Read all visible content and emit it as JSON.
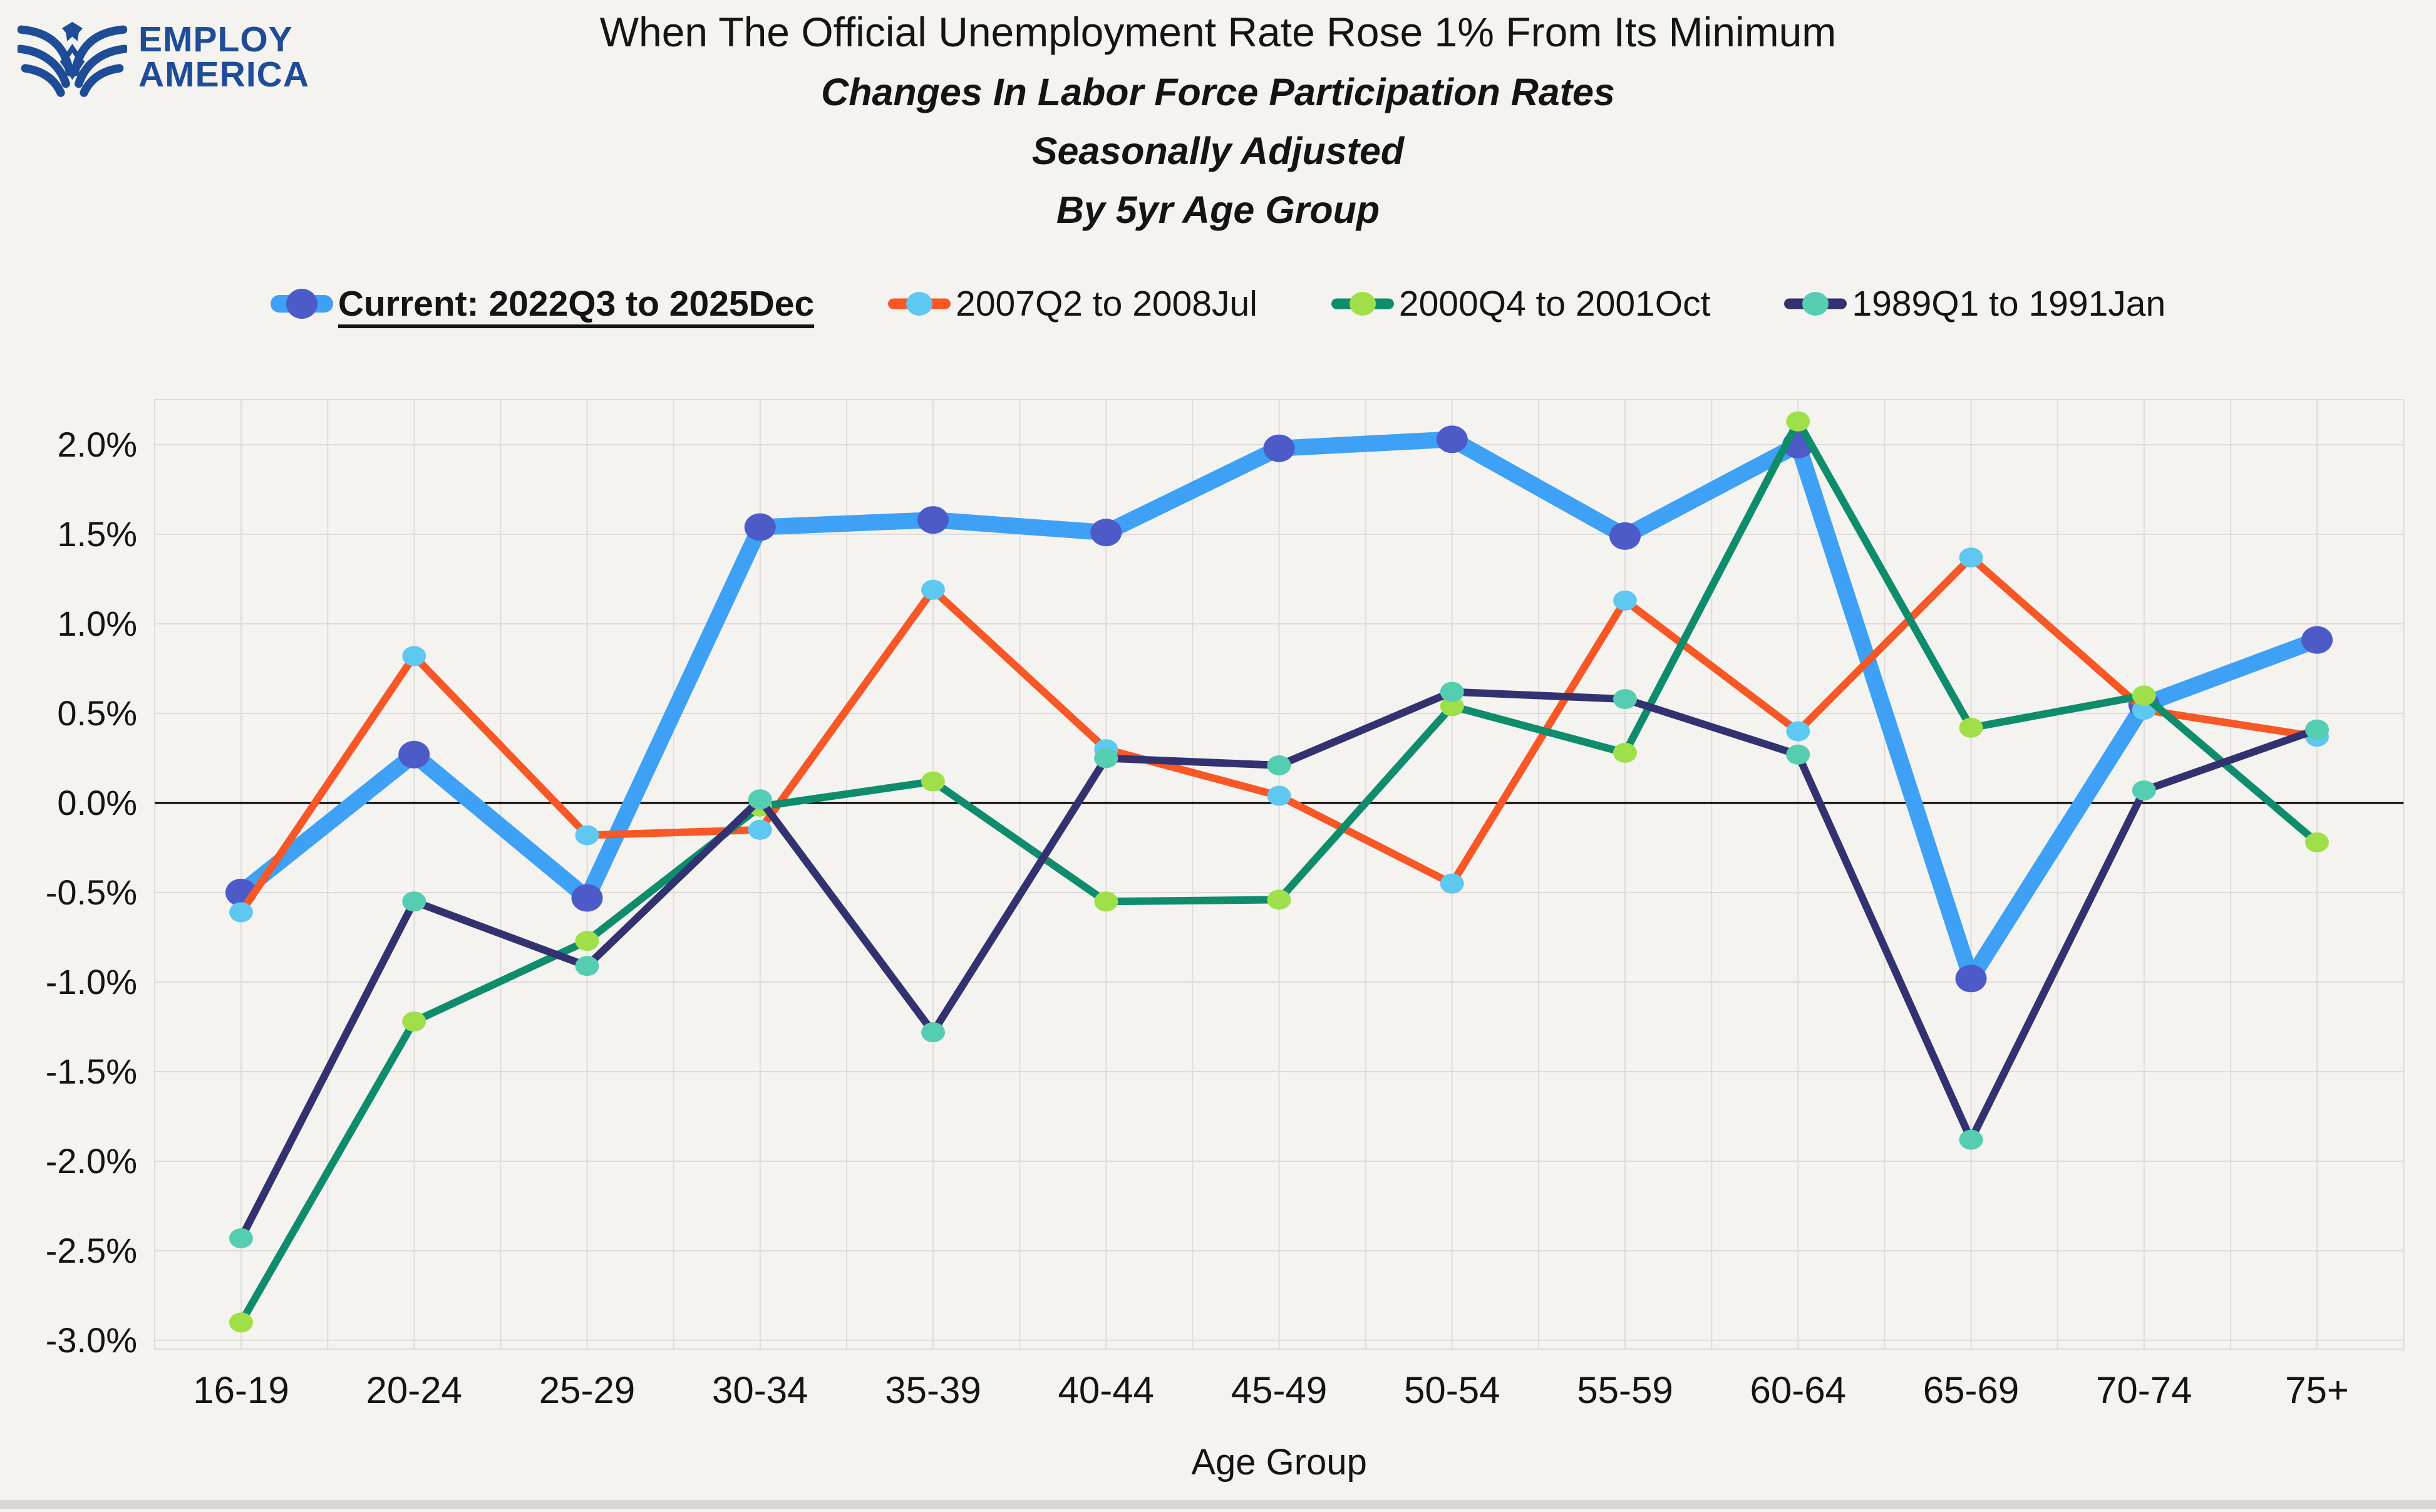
{
  "logo": {
    "line1": "EMPLOY",
    "line2": "AMERICA",
    "color": "#1E4C97"
  },
  "title": {
    "main": "When The Official Unemployment Rate Rose 1% From Its Minimum",
    "subtitle1": "Changes In Labor Force Participation Rates",
    "subtitle2": "Seasonally Adjusted",
    "subtitle3": "By 5yr Age Group"
  },
  "page": {
    "background": "#F5F3F0",
    "grid_color": "#DDDCDA",
    "zero_line_color": "#000000",
    "text_color": "#141414"
  },
  "chart_data": {
    "type": "line",
    "xlabel": "Age Group",
    "categories": [
      "16-19",
      "20-24",
      "25-29",
      "30-34",
      "35-39",
      "40-44",
      "45-49",
      "50-54",
      "55-59",
      "60-64",
      "65-69",
      "70-74",
      "75+"
    ],
    "ytick_values": [
      2.0,
      1.5,
      1.0,
      0.5,
      0.0,
      -0.5,
      -1.0,
      -1.5,
      -2.0,
      -2.5,
      -3.0
    ],
    "ytick_labels": [
      "2.0%",
      "1.5%",
      "1.0%",
      "0.5%",
      "0.0%",
      "-0.5%",
      "-1.0%",
      "-1.5%",
      "-2.0%",
      "-2.5%",
      "-3.0%"
    ],
    "ylim": [
      -3.25,
      2.25
    ],
    "grid": true,
    "legend_position": "top",
    "series": [
      {
        "name": "Current: 2022Q3 to 2025Dec",
        "line_color": "#3EA1F5",
        "marker_color": "#4C5BC7",
        "emphasis": true,
        "values": [
          -0.5,
          0.27,
          -0.53,
          1.54,
          1.58,
          1.51,
          1.98,
          2.03,
          1.49,
          2.0,
          -0.98,
          0.55,
          0.91
        ]
      },
      {
        "name": "2007Q2 to 2008Jul",
        "line_color": "#F95726",
        "marker_color": "#5EC8F0",
        "emphasis": false,
        "values": [
          -0.61,
          0.82,
          -0.18,
          -0.15,
          1.19,
          0.3,
          0.04,
          -0.45,
          1.13,
          0.4,
          1.37,
          0.52,
          0.37
        ]
      },
      {
        "name": "2000Q4 to 2001Oct",
        "line_color": "#0F8C6C",
        "marker_color": "#9FE04A",
        "emphasis": false,
        "values": [
          -2.9,
          -1.22,
          -0.77,
          -0.02,
          0.12,
          -0.55,
          -0.54,
          0.54,
          0.28,
          2.13,
          0.42,
          0.6,
          -0.22
        ]
      },
      {
        "name": "1989Q1 to 1991Jan",
        "line_color": "#333270",
        "marker_color": "#55CDB1",
        "emphasis": false,
        "values": [
          -2.43,
          -0.55,
          -0.91,
          0.02,
          -1.28,
          0.25,
          0.21,
          0.62,
          0.58,
          0.27,
          -1.88,
          0.07,
          0.41
        ]
      }
    ]
  }
}
